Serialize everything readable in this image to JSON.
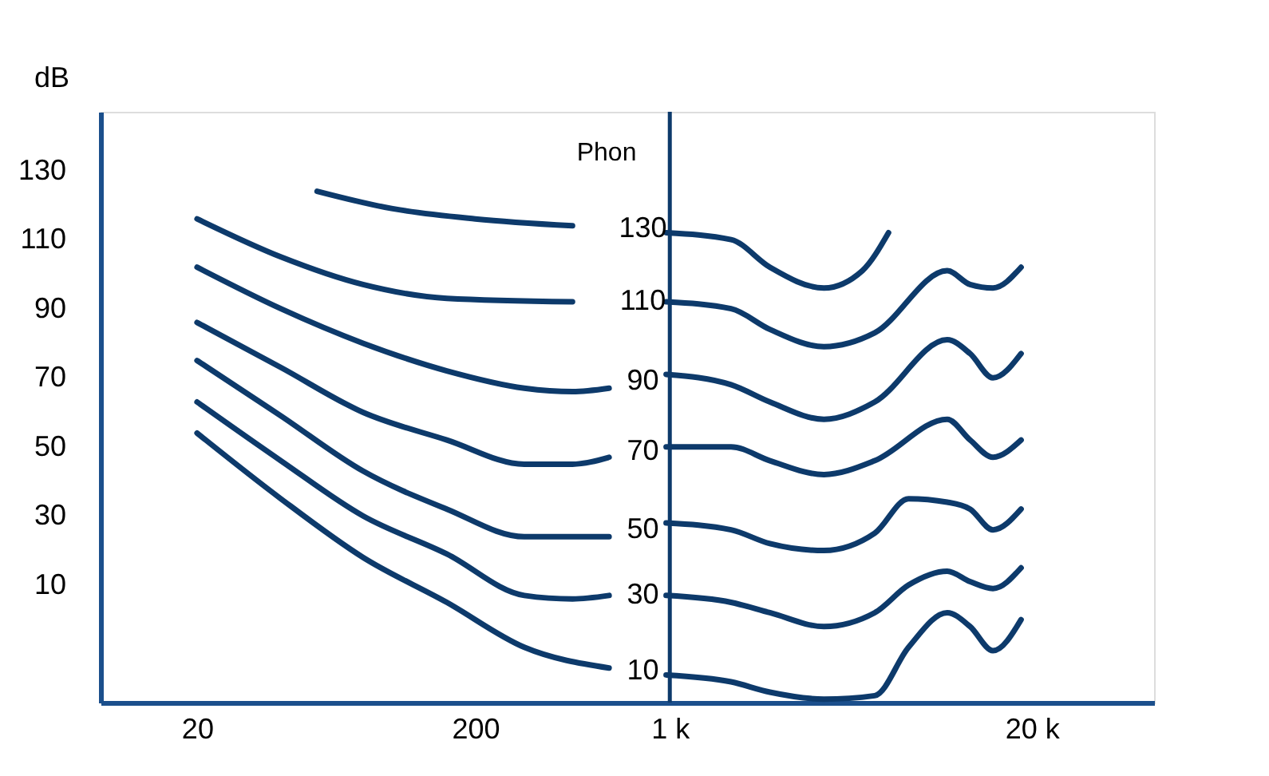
{
  "chart_data": {
    "type": "line",
    "ylabel": "dB",
    "log": "x",
    "xlim": [
      9,
      55000
    ],
    "ylim": [
      -24,
      147
    ],
    "xticks": [
      20,
      200,
      {
        "value": 1000,
        "label": "1 k"
      },
      {
        "value": 20000,
        "label": "20 k"
      }
    ],
    "yticks": [
      10,
      30,
      50,
      70,
      90,
      110,
      130
    ],
    "grid": false,
    "marker": "none",
    "line_style": "solid",
    "annotations": [
      "Phon"
    ],
    "ref_lines": [
      {
        "axis": "x",
        "value": 1000,
        "label": null,
        "color": "#0d3a6b"
      }
    ],
    "series": [
      {
        "name": "130",
        "color": "#0d3a6b",
        "x": [
          54,
          100,
          200,
          447,
          800,
          970,
          1660,
          2290,
          3580,
          4920,
          6110
        ],
        "values": [
          124,
          119,
          116,
          114,
          null,
          112,
          110,
          102,
          96,
          101,
          112
        ]
      },
      {
        "name": "110",
        "color": "#0d3a6b",
        "x": [
          20,
          40,
          79,
          158,
          447,
          800,
          970,
          1660,
          2290,
          3580,
          5450,
          9930,
          12000,
          14500,
          18300
        ],
        "values": [
          116,
          105,
          97,
          93,
          92,
          null,
          92,
          90,
          84,
          79,
          83,
          101,
          97,
          96,
          102
        ]
      },
      {
        "name": "90",
        "color": "#0d3a6b",
        "x": [
          20,
          40,
          79,
          158,
          300,
          447,
          605,
          800,
          970,
          1660,
          2290,
          3580,
          5450,
          9930,
          12000,
          14500,
          18300
        ],
        "values": [
          102,
          90,
          80,
          72,
          67,
          66,
          67,
          null,
          71,
          68,
          63,
          58,
          63,
          81,
          77,
          70,
          77
        ]
      },
      {
        "name": "70",
        "color": "#0d3a6b",
        "x": [
          20,
          40,
          79,
          158,
          300,
          447,
          605,
          800,
          970,
          1660,
          2290,
          3580,
          5450,
          9930,
          12000,
          14500,
          18300
        ],
        "values": [
          86,
          73,
          60,
          52,
          45,
          45,
          47,
          null,
          50,
          50,
          46,
          42,
          46,
          58,
          52,
          47,
          52
        ]
      },
      {
        "name": "50",
        "color": "#0d3a6b",
        "x": [
          20,
          40,
          79,
          158,
          300,
          605,
          800,
          970,
          1660,
          2290,
          3580,
          5450,
          7210,
          9930,
          12000,
          14500,
          18300
        ],
        "values": [
          75,
          59,
          43,
          32,
          24,
          24,
          null,
          28,
          26,
          22,
          20,
          25,
          35,
          34,
          32,
          26,
          32
        ]
      },
      {
        "name": "30",
        "color": "#0d3a6b",
        "x": [
          20,
          40,
          79,
          158,
          300,
          447,
          605,
          800,
          970,
          1660,
          2290,
          3580,
          5450,
          7210,
          9930,
          12000,
          14500,
          18300
        ],
        "values": [
          63,
          46,
          30,
          19,
          7,
          6,
          7,
          null,
          7,
          5,
          2,
          -2,
          2,
          10,
          14,
          11,
          9,
          15
        ]
      },
      {
        "name": "10",
        "color": "#0d3a6b",
        "x": [
          20,
          40,
          79,
          158,
          300,
          605,
          800,
          970,
          1660,
          2290,
          3580,
          5450,
          7210,
          9930,
          12000,
          14500,
          18300
        ],
        "values": [
          54,
          35,
          18,
          5,
          -8,
          -14,
          null,
          -16,
          -18,
          -21,
          -23,
          -22,
          -8,
          2,
          -2,
          -9,
          0
        ]
      }
    ]
  }
}
